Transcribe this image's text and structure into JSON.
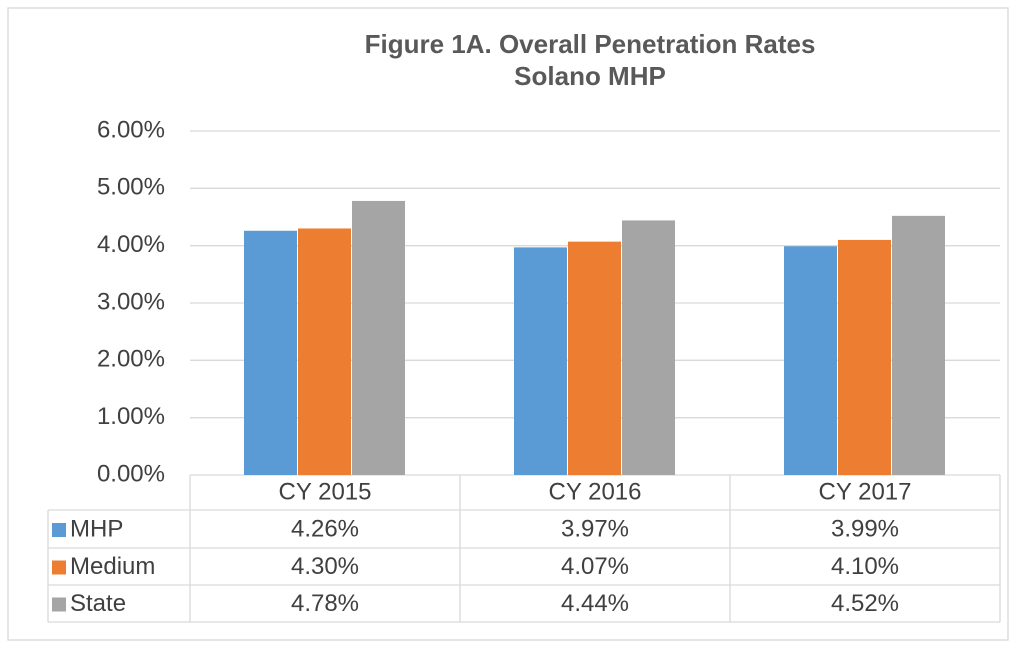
{
  "chart_data": {
    "type": "bar",
    "title": "Figure 1A. Overall Penetration Rates",
    "subtitle": "Solano MHP",
    "categories": [
      "CY 2015",
      "CY 2016",
      "CY 2017"
    ],
    "series": [
      {
        "name": "MHP",
        "color": "#5b9bd5",
        "values": [
          4.26,
          3.97,
          3.99
        ],
        "value_labels": [
          "4.26%",
          "3.97%",
          "3.99%"
        ]
      },
      {
        "name": "Medium",
        "color": "#ed7d31",
        "values": [
          4.3,
          4.07,
          4.1
        ],
        "value_labels": [
          "4.30%",
          "4.07%",
          "4.10%"
        ]
      },
      {
        "name": "State",
        "color": "#a5a5a5",
        "values": [
          4.78,
          4.44,
          4.52
        ],
        "value_labels": [
          "4.78%",
          "4.44%",
          "4.52%"
        ]
      }
    ],
    "ylim": [
      0,
      6
    ],
    "yticks": [
      {
        "value": 0,
        "label": "0.00%"
      },
      {
        "value": 1,
        "label": "1.00%"
      },
      {
        "value": 2,
        "label": "2.00%"
      },
      {
        "value": 3,
        "label": "3.00%"
      },
      {
        "value": 4,
        "label": "4.00%"
      },
      {
        "value": 5,
        "label": "5.00%"
      },
      {
        "value": 6,
        "label": "6.00%"
      }
    ],
    "grid": true
  }
}
